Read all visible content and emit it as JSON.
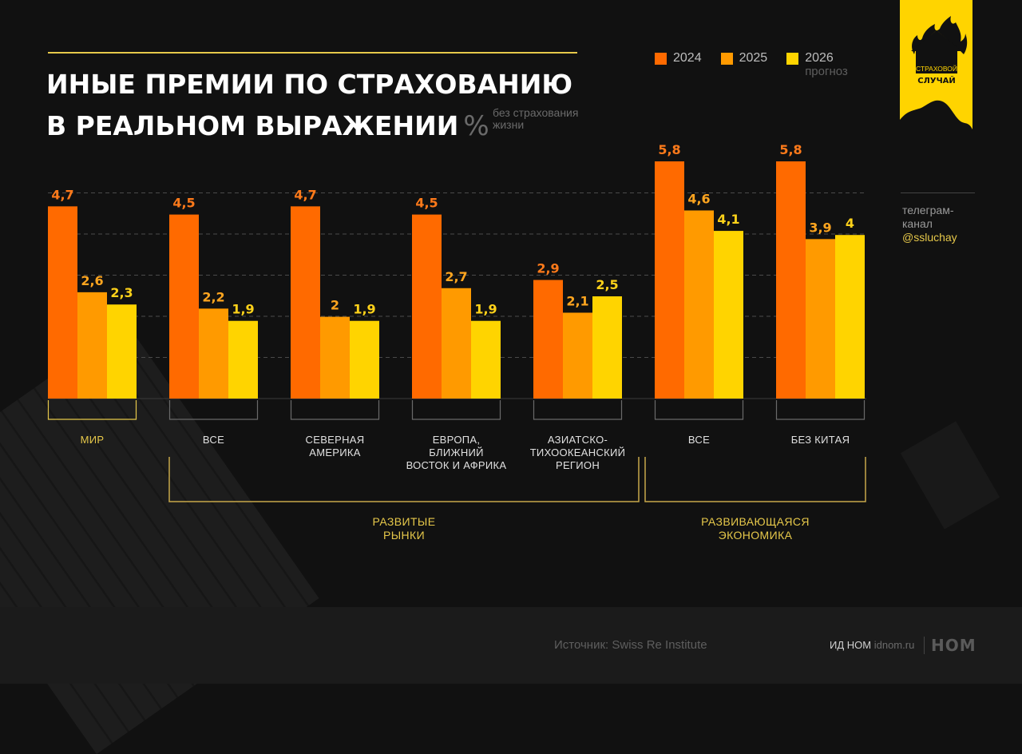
{
  "header": {
    "title_line1": "ИНЫЕ ПРЕМИИ ПО СТРАХОВАНИЮ",
    "title_line2": "В РЕАЛЬНОМ ВЫРАЖЕНИИ",
    "unit": "%",
    "subtitle_line1": "без страхования",
    "subtitle_line2": "жизни"
  },
  "legend": [
    {
      "label": "2024",
      "sub": "",
      "color": "#ff6a00"
    },
    {
      "label": "2025",
      "sub": "",
      "color": "#ff9a00"
    },
    {
      "label": "2026",
      "sub": "прогноз",
      "color": "#ffd400"
    }
  ],
  "logo": {
    "line1": "СТРАХОВОЙ",
    "line2": "СЛУЧАЙ",
    "bg_color": "#ffd400"
  },
  "telegram": {
    "line1": "телеграм-",
    "line2": "канал",
    "handle": "@ssluchay"
  },
  "chart_data": {
    "type": "bar",
    "title": "ИНЫЕ ПРЕМИИ ПО СТРАХОВАНИЮ В РЕАЛЬНОМ ВЫРАЖЕНИИ, % (без страхования жизни)",
    "xlabel": "",
    "ylabel": "%",
    "ylim": [
      0,
      6
    ],
    "grid": true,
    "legend_position": "top-right",
    "categories": [
      [
        "МИР"
      ],
      [
        "ВСЕ"
      ],
      [
        "СЕВЕРНАЯ",
        "АМЕРИКА"
      ],
      [
        "ЕВРОПА,",
        "БЛИЖНИЙ",
        "ВОСТОК И АФРИКА"
      ],
      [
        "АЗИАТСКО-",
        "ТИХООКЕАНСКИЙ",
        "РЕГИОН"
      ],
      [
        "ВСЕ"
      ],
      [
        "БЕЗ КИТАЯ"
      ]
    ],
    "groups": [
      {
        "label": [
          "РАЗВИТЫЕ",
          "РЫНКИ"
        ],
        "from": 1,
        "to": 4
      },
      {
        "label": [
          "РАЗВИВАЮЩАЯСЯ",
          "ЭКОНОМИКА"
        ],
        "from": 5,
        "to": 6
      }
    ],
    "series": [
      {
        "name": "2024",
        "values": [
          4.7,
          4.5,
          4.7,
          4.5,
          2.9,
          5.8,
          5.8
        ],
        "labels": [
          "4,7",
          "4,5",
          "4,7",
          "4,5",
          "2,9",
          "5,8",
          "5,8"
        ]
      },
      {
        "name": "2025",
        "values": [
          2.6,
          2.2,
          2.0,
          2.7,
          2.1,
          4.6,
          3.9
        ],
        "labels": [
          "2,6",
          "2,2",
          "2",
          "2,7",
          "2,1",
          "4,6",
          "3,9"
        ]
      },
      {
        "name": "2026 прогноз",
        "values": [
          2.3,
          1.9,
          1.9,
          1.9,
          2.5,
          4.1,
          4.0
        ],
        "labels": [
          "2,3",
          "1,9",
          "1,9",
          "1,9",
          "2,5",
          "4,1",
          "4"
        ]
      }
    ],
    "label_colors": [
      "#ff7a1a",
      "#ffa51f",
      "#ffd21a"
    ]
  },
  "footer": {
    "source": "Источник: Swiss Re Institute",
    "publisher": "ИД НОМ",
    "publisher_url": "idnom.ru",
    "publisher_logo": "НОМ"
  }
}
